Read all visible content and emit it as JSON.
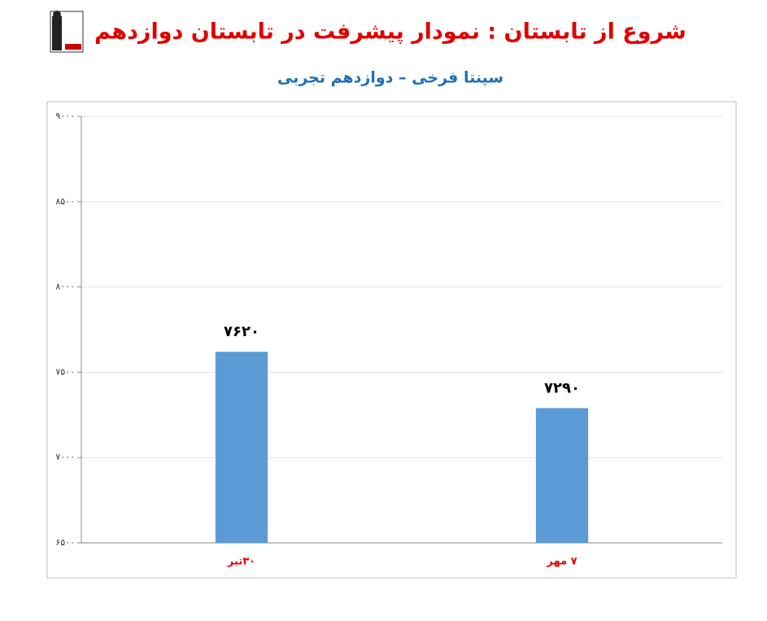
{
  "chart_data": {
    "type": "bar",
    "title": "شروع از تابستان : نمودار پیشرفت در تابستان دوازدهم",
    "subtitle": "سپنتا فرخی – دوازدهم تجربی",
    "categories": [
      "۳۰تیر",
      "۷ مهر"
    ],
    "values": [
      7620,
      7290
    ],
    "value_labels": [
      "۷۶۲۰",
      "۷۲۹۰"
    ],
    "color": "#5b9bd5",
    "ylim": [
      6500,
      9000
    ],
    "yticks": [
      {
        "value": 6500,
        "label": "۶۵۰۰"
      },
      {
        "value": 7000,
        "label": "۷۰۰۰"
      },
      {
        "value": 7500,
        "label": "۷۵۰۰"
      },
      {
        "value": 8000,
        "label": "۸۰۰۰"
      },
      {
        "value": 8500,
        "label": "۸۵۰۰"
      },
      {
        "value": 9000,
        "label": "۹۰۰۰"
      }
    ],
    "grid": true
  }
}
